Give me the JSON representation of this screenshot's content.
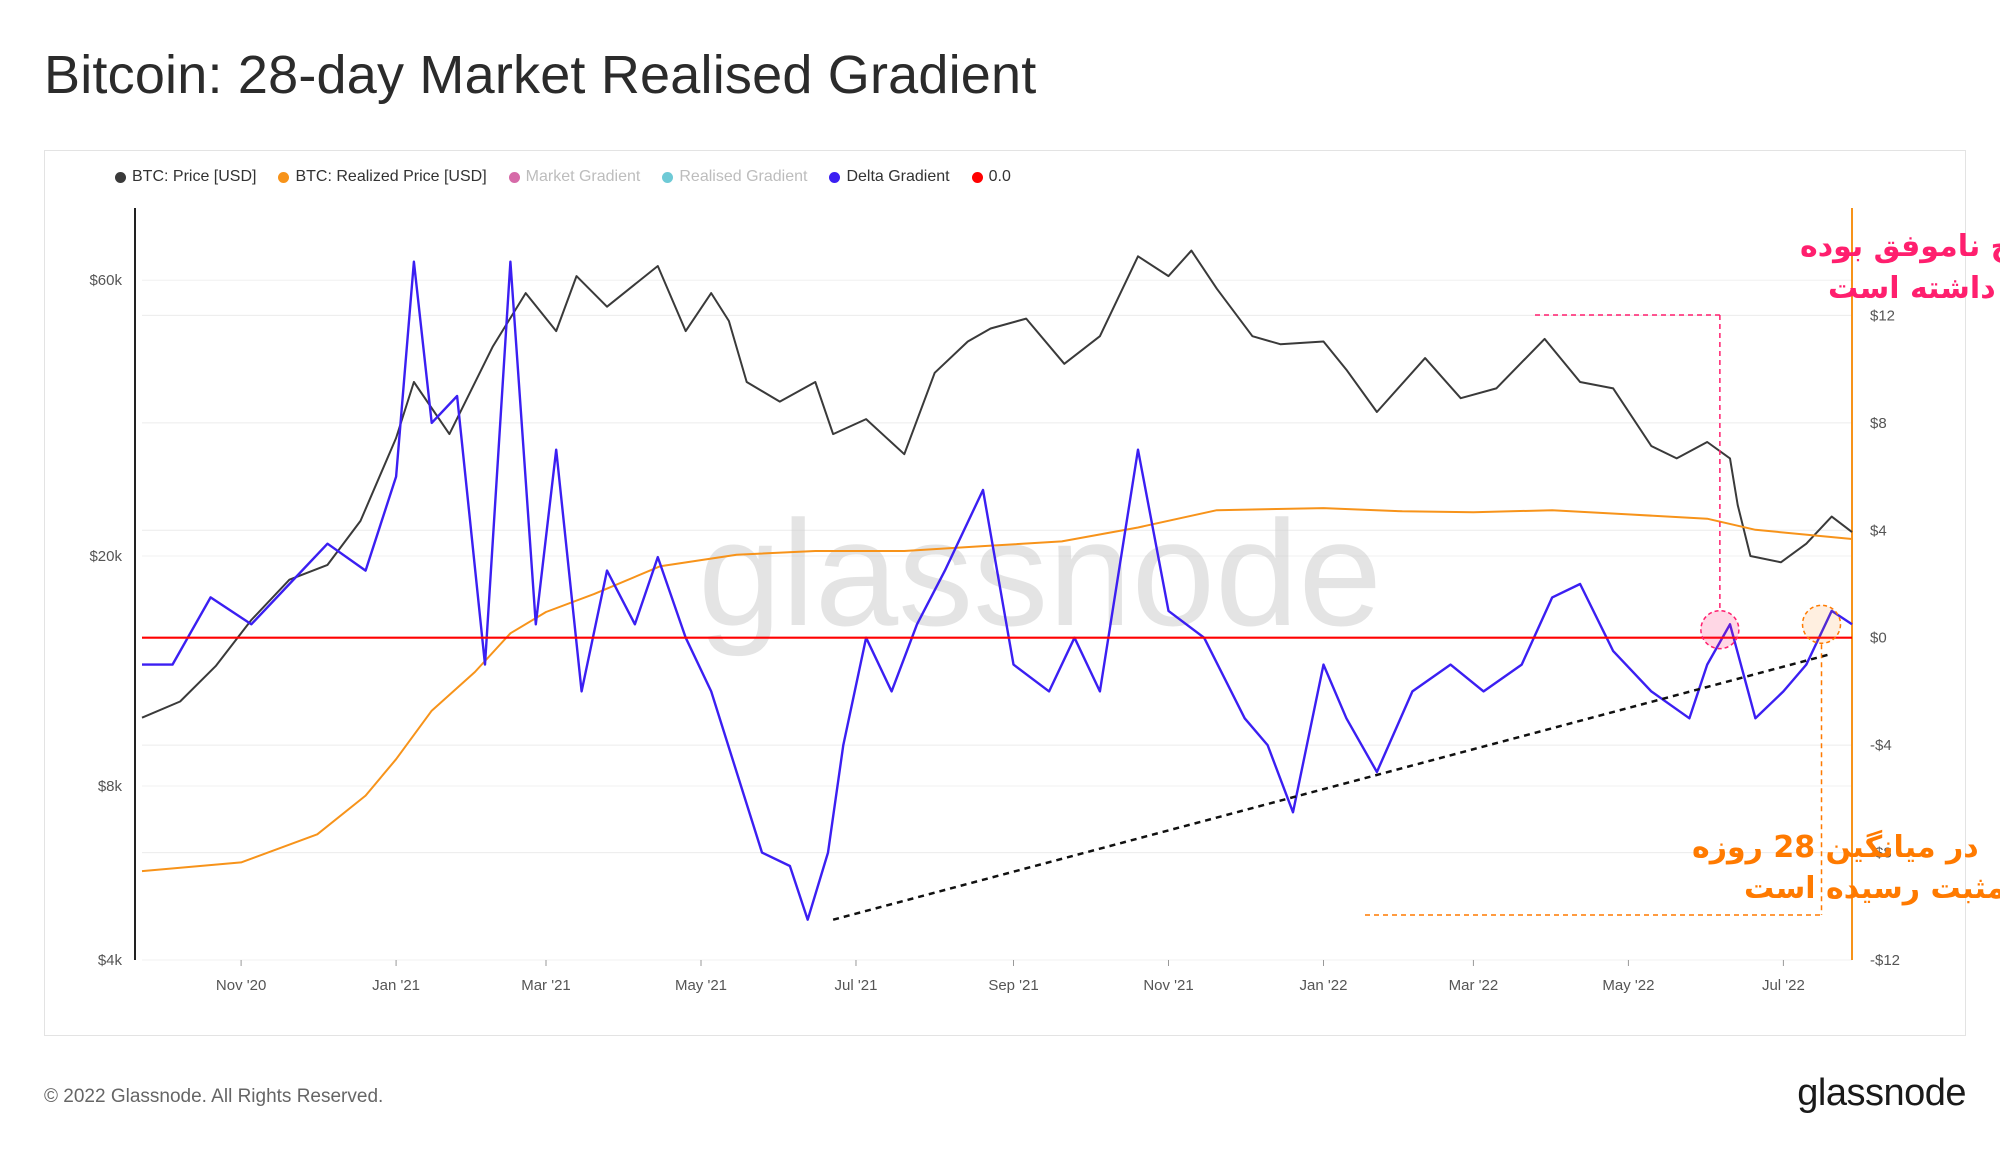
{
  "title": "Bitcoin: 28-day Market Realised Gradient",
  "footer": "© 2022 Glassnode. All Rights Reserved.",
  "brand": "glassnode",
  "watermark": "glassnode",
  "legend": [
    {
      "label": "BTC: Price [USD]",
      "color": "#3a3a3a",
      "faded": false
    },
    {
      "label": "BTC: Realized Price [USD]",
      "color": "#f7931a",
      "faded": false
    },
    {
      "label": "Market Gradient",
      "color": "#d66aa8",
      "faded": true
    },
    {
      "label": "Realised Gradient",
      "color": "#6ecad6",
      "faded": true
    },
    {
      "label": "Delta Gradient",
      "color": "#3b1ff2",
      "faded": false
    },
    {
      "label": "0.0",
      "color": "#ff0000",
      "faded": false
    }
  ],
  "annotations": {
    "red_line1": "در شکست این سطح ناموفق بوده",
    "red_line2": "و سقوط قیمت را به دنبال داشته است",
    "orange_line1": "در میانگین 28 روزه",
    "orange_line2": "به مقدار مثبت رسیده است",
    "red_color": "#ff1f6e",
    "orange_color": "#ff7a00"
  },
  "chart_data": {
    "type": "line",
    "title": "Bitcoin: 28-day Market Realised Gradient",
    "x_range": [
      "2020-09-23",
      "2022-07-28"
    ],
    "x_ticks": [
      "Nov '20",
      "Jan '21",
      "Mar '21",
      "May '21",
      "Jul '21",
      "Sep '21",
      "Nov '21",
      "Jan '22",
      "Mar '22",
      "May '22",
      "Jul '22"
    ],
    "x_tick_dates": [
      "2020-11-01",
      "2021-01-01",
      "2021-03-01",
      "2021-05-01",
      "2021-07-01",
      "2021-09-01",
      "2021-11-01",
      "2022-01-01",
      "2022-03-01",
      "2022-05-01",
      "2022-07-01"
    ],
    "y_left": {
      "scale": "log",
      "range": [
        4000,
        80000
      ],
      "ticks": [
        4000,
        8000,
        20000,
        60000
      ],
      "tick_labels": [
        "$4k",
        "$8k",
        "$20k",
        "$60k"
      ]
    },
    "y_right": {
      "scale": "linear",
      "range": [
        -12,
        16
      ],
      "ticks": [
        -12,
        -8,
        -4,
        0,
        4,
        8,
        12
      ],
      "tick_labels": [
        "-$12",
        "-$8",
        "-$4",
        "$0",
        "$4",
        "$8",
        "$12"
      ]
    },
    "grid": true,
    "legend_placement": "top-left",
    "series": [
      {
        "name": "BTC: Price [USD]",
        "axis": "left",
        "color": "#3a3a3a",
        "x": [
          "2020-09-23",
          "2020-10-08",
          "2020-10-22",
          "2020-11-05",
          "2020-11-20",
          "2020-12-05",
          "2020-12-18",
          "2021-01-01",
          "2021-01-08",
          "2021-01-22",
          "2021-02-08",
          "2021-02-21",
          "2021-03-05",
          "2021-03-13",
          "2021-03-25",
          "2021-04-14",
          "2021-04-25",
          "2021-05-05",
          "2021-05-12",
          "2021-05-19",
          "2021-06-01",
          "2021-06-15",
          "2021-06-22",
          "2021-07-05",
          "2021-07-20",
          "2021-08-01",
          "2021-08-14",
          "2021-08-23",
          "2021-09-06",
          "2021-09-21",
          "2021-10-05",
          "2021-10-20",
          "2021-11-01",
          "2021-11-10",
          "2021-11-20",
          "2021-12-04",
          "2021-12-15",
          "2022-01-01",
          "2022-01-10",
          "2022-01-22",
          "2022-02-10",
          "2022-02-24",
          "2022-03-10",
          "2022-03-29",
          "2022-04-12",
          "2022-04-25",
          "2022-05-10",
          "2022-05-20",
          "2022-06-01",
          "2022-06-10",
          "2022-06-13",
          "2022-06-18",
          "2022-06-30",
          "2022-07-10",
          "2022-07-20",
          "2022-07-28"
        ],
        "values": [
          10500,
          11200,
          12900,
          15500,
          18200,
          19300,
          23000,
          32000,
          40000,
          32500,
          46000,
          57000,
          49000,
          61000,
          54000,
          63500,
          49000,
          57000,
          51000,
          40000,
          37000,
          40000,
          32500,
          34500,
          30000,
          41500,
          47000,
          49500,
          51500,
          43000,
          48000,
          66000,
          61000,
          67500,
          58000,
          48000,
          46500,
          47000,
          42000,
          35500,
          44000,
          37500,
          39000,
          47500,
          40000,
          39000,
          31000,
          29500,
          31500,
          29500,
          24500,
          20000,
          19500,
          21000,
          23400,
          22000
        ]
      },
      {
        "name": "BTC: Realized Price [USD]",
        "axis": "left",
        "color": "#f7931a",
        "x": [
          "2020-09-23",
          "2020-11-01",
          "2020-12-01",
          "2020-12-20",
          "2021-01-01",
          "2021-01-15",
          "2021-02-01",
          "2021-02-15",
          "2021-03-01",
          "2021-03-20",
          "2021-04-15",
          "2021-05-15",
          "2021-06-15",
          "2021-07-20",
          "2021-08-20",
          "2021-09-20",
          "2021-10-20",
          "2021-11-20",
          "2022-01-01",
          "2022-02-01",
          "2022-03-01",
          "2022-04-01",
          "2022-05-01",
          "2022-06-01",
          "2022-06-20",
          "2022-07-28"
        ],
        "values": [
          5700,
          5900,
          6600,
          7700,
          8900,
          10800,
          12600,
          14700,
          16000,
          17200,
          19200,
          20100,
          20400,
          20400,
          20800,
          21200,
          22400,
          24000,
          24200,
          23900,
          23800,
          24000,
          23600,
          23200,
          22200,
          21400
        ]
      },
      {
        "name": "Delta Gradient",
        "axis": "right",
        "color": "#3b1ff2",
        "x": [
          "2020-09-23",
          "2020-10-05",
          "2020-10-20",
          "2020-11-05",
          "2020-11-20",
          "2020-12-05",
          "2020-12-20",
          "2021-01-01",
          "2021-01-08",
          "2021-01-15",
          "2021-01-25",
          "2021-02-05",
          "2021-02-15",
          "2021-02-25",
          "2021-03-05",
          "2021-03-15",
          "2021-03-25",
          "2021-04-05",
          "2021-04-14",
          "2021-04-25",
          "2021-05-05",
          "2021-05-15",
          "2021-05-25",
          "2021-06-05",
          "2021-06-12",
          "2021-06-20",
          "2021-06-26",
          "2021-07-05",
          "2021-07-15",
          "2021-07-25",
          "2021-08-05",
          "2021-08-20",
          "2021-09-01",
          "2021-09-15",
          "2021-09-25",
          "2021-10-05",
          "2021-10-20",
          "2021-11-01",
          "2021-11-15",
          "2021-12-01",
          "2021-12-10",
          "2021-12-20",
          "2022-01-01",
          "2022-01-10",
          "2022-01-22",
          "2022-02-05",
          "2022-02-20",
          "2022-03-05",
          "2022-03-20",
          "2022-04-01",
          "2022-04-12",
          "2022-04-25",
          "2022-05-10",
          "2022-05-25",
          "2022-06-01",
          "2022-06-10",
          "2022-06-20",
          "2022-07-01",
          "2022-07-10",
          "2022-07-20",
          "2022-07-28"
        ],
        "values": [
          -1,
          -1,
          1.5,
          0.5,
          2,
          3.5,
          2.5,
          6,
          14,
          8,
          9,
          -1,
          14,
          0.5,
          7,
          -2,
          2.5,
          0.5,
          3,
          0,
          -2,
          -5,
          -8,
          -8.5,
          -10.5,
          -8,
          -4,
          0,
          -2,
          0.5,
          2.5,
          5.5,
          -1,
          -2,
          0,
          -2,
          7,
          1,
          0,
          -3,
          -4,
          -6.5,
          -1,
          -3,
          -5,
          -2,
          -1,
          -2,
          -1,
          1.5,
          2,
          -0.5,
          -2,
          -3,
          -1,
          0.5,
          -3,
          -2,
          -1,
          1,
          0.5
        ]
      },
      {
        "name": "0.0",
        "axis": "right",
        "color": "#ff0000",
        "x": [
          "2020-09-23",
          "2022-07-28"
        ],
        "values": [
          0,
          0
        ]
      }
    ]
  }
}
